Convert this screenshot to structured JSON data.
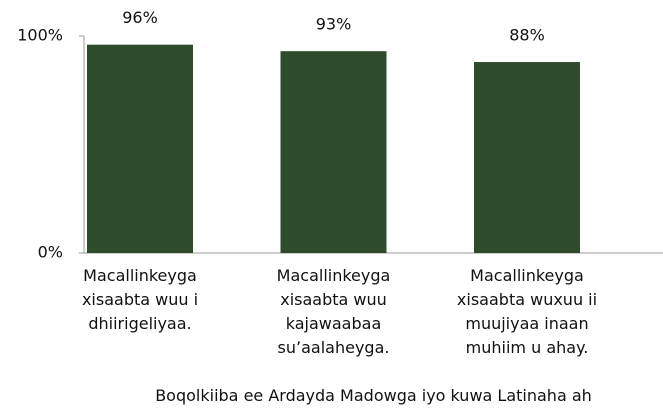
{
  "chart_data": {
    "type": "bar",
    "categories": [
      "Macallinkeyga xisaabta wuu i dhiirigeliyaa.",
      "Macallinkeyga xisaabta wuu kajawaabaa su’aalaheyga.",
      "Macallinkeyga xisaabta wuxuu ii muujiyaa inaan muhiim u ahay."
    ],
    "values": [
      96,
      93,
      88
    ],
    "value_labels": [
      "96%",
      "93%",
      "88%"
    ],
    "color": "#2e4b2c",
    "ylim": [
      0,
      100
    ],
    "yticks": [
      {
        "value": 0,
        "label": "0%"
      },
      {
        "value": 100,
        "label": "100%"
      }
    ],
    "xlabel": "Boqolkiiba ee Ardayda Madowga iyo kuwa Latinaha ah"
  }
}
